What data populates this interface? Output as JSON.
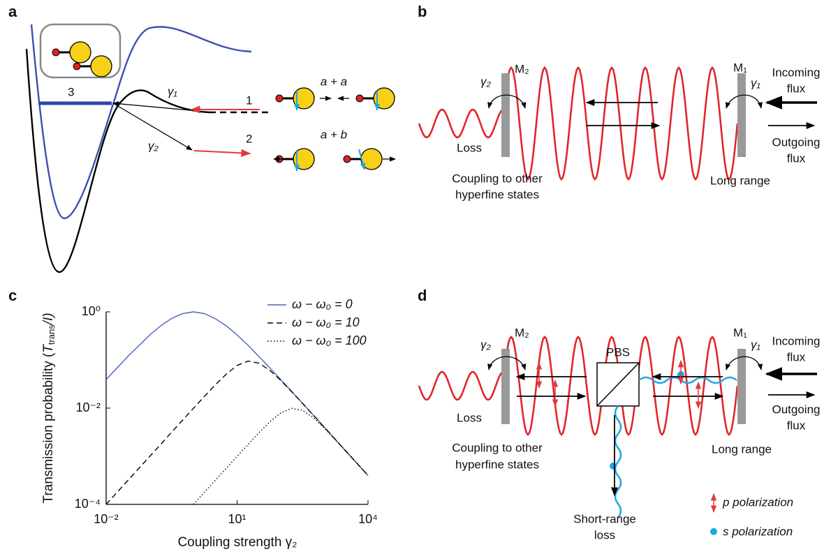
{
  "panels": {
    "a": {
      "label": "a",
      "level": "3",
      "gamma1": "γ₁",
      "gamma2": "γ₂",
      "channel1": "1",
      "channel2": "2",
      "pair1": "a + a",
      "pair2": "a + b"
    },
    "b": {
      "label": "b",
      "mirror2": "M₂",
      "mirror1": "M₁",
      "gamma2": "γ₂",
      "gamma1": "γ₁",
      "incoming": [
        "Incoming",
        "flux"
      ],
      "outgoing": [
        "Outgoing",
        "flux"
      ],
      "loss": "Loss",
      "coupling": [
        "Coupling to other",
        "hyperfine states"
      ],
      "long_range": "Long range"
    },
    "c": {
      "label": "c"
    },
    "d": {
      "label": "d",
      "mirror2": "M₂",
      "mirror1": "M₁",
      "gamma2": "γ₂",
      "gamma1": "γ₁",
      "pbs": "PBS",
      "incoming": [
        "Incoming",
        "flux"
      ],
      "outgoing": [
        "Outgoing",
        "flux"
      ],
      "loss": "Loss",
      "coupling": [
        "Coupling to other",
        "hyperfine states"
      ],
      "long_range": "Long range",
      "short_range": [
        "Short-range",
        "loss"
      ],
      "p_pol": "p polarization",
      "s_pol": "s polarization"
    }
  },
  "chart_data": {
    "type": "line",
    "xlabel": "Coupling strength γ₂",
    "ylabel": [
      "Transmission probability (",
      "T",
      "trans",
      "/I)"
    ],
    "x": [
      0.01,
      0.0316,
      0.1,
      0.178,
      0.316,
      0.562,
      1,
      1.78,
      3.16,
      5.62,
      10,
      17.8,
      31.6,
      56.2,
      100,
      178,
      316,
      562,
      1000,
      3162,
      10000
    ],
    "series": [
      {
        "name": "ω − ω₀ = 0",
        "color": "#4a63b5",
        "dash": "solid",
        "values": [
          0.0392,
          0.119,
          0.331,
          0.513,
          0.729,
          0.921,
          1,
          0.921,
          0.724,
          0.513,
          0.331,
          0.202,
          0.118,
          0.0685,
          0.0392,
          0.0222,
          0.0126,
          0.00709,
          0.00399,
          0.00126,
          0.0004
        ]
      },
      {
        "name": "ω − ω₀ = 10",
        "color": "#000000",
        "dash": "dashed",
        "values": [
          0.0001,
          0.000315,
          0.000997,
          0.00177,
          0.00315,
          0.00559,
          0.0099,
          0.0175,
          0.0303,
          0.0507,
          0.0768,
          0.0947,
          0.086,
          0.061,
          0.0377,
          0.0219,
          0.01253,
          0.00708,
          0.00399,
          0.00126,
          0.0004
        ]
      },
      {
        "name": "ω − ω₀ = 100",
        "color": "#000000",
        "dash": "dotted",
        "values": [
          null,
          null,
          null,
          null,
          null,
          null,
          0.0001,
          0.000178,
          0.000316,
          0.000561,
          0.000997,
          0.00176,
          0.00308,
          0.00519,
          0.00797,
          0.00988,
          0.009,
          0.0063,
          0.00384,
          0.00126,
          0.0004
        ]
      }
    ],
    "xscale": "log",
    "yscale": "log",
    "xlim": [
      0.01,
      10000
    ],
    "ylim": [
      0.0001,
      1
    ],
    "xticks": [
      {
        "value": 0.01,
        "label": "10⁻²"
      },
      {
        "value": 10,
        "label": "10¹"
      },
      {
        "value": 10000,
        "label": "10⁴"
      }
    ],
    "yticks": [
      {
        "value": 0.0001,
        "label": "10⁻⁴"
      },
      {
        "value": 0.01,
        "label": "10⁻²"
      },
      {
        "value": 1,
        "label": "10⁰"
      }
    ],
    "legend": "upper right"
  }
}
